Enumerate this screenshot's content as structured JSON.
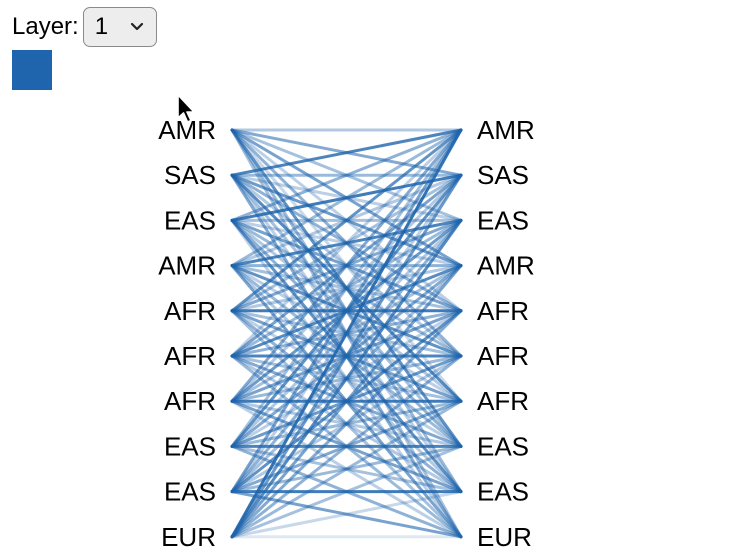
{
  "controls": {
    "layer_label": "Layer:",
    "layer_value": "1"
  },
  "colors": {
    "link": "#1f65ad",
    "swatch": "#1f65ad"
  },
  "diagram": {
    "left_nodes": [
      "AMR",
      "SAS",
      "EAS",
      "AMR",
      "AFR",
      "AFR",
      "AFR",
      "EAS",
      "EAS",
      "EUR"
    ],
    "right_nodes": [
      "AMR",
      "SAS",
      "EAS",
      "AMR",
      "AFR",
      "AFR",
      "AFR",
      "EAS",
      "EAS",
      "EUR"
    ],
    "link_weights": [
      [
        0.35,
        0.55,
        0.4,
        0.6,
        0.3,
        0.5,
        0.25,
        0.7,
        0.45,
        0.4
      ],
      [
        0.8,
        0.45,
        0.3,
        0.65,
        0.5,
        0.35,
        0.75,
        0.4,
        0.3,
        0.55
      ],
      [
        0.5,
        0.85,
        0.4,
        0.3,
        0.6,
        0.45,
        0.35,
        0.5,
        0.7,
        0.3
      ],
      [
        0.45,
        0.35,
        0.8,
        0.5,
        0.4,
        0.7,
        0.3,
        0.45,
        0.35,
        0.6
      ],
      [
        0.7,
        0.4,
        0.55,
        0.35,
        0.85,
        0.4,
        0.6,
        0.3,
        0.5,
        0.4
      ],
      [
        0.3,
        0.6,
        0.45,
        0.75,
        0.5,
        0.8,
        0.4,
        0.55,
        0.35,
        0.45
      ],
      [
        0.55,
        0.35,
        0.65,
        0.4,
        0.6,
        0.45,
        0.85,
        0.35,
        0.6,
        0.3
      ],
      [
        0.4,
        0.7,
        0.35,
        0.55,
        0.3,
        0.65,
        0.45,
        0.8,
        0.4,
        0.5
      ],
      [
        0.6,
        0.3,
        0.5,
        0.4,
        0.7,
        0.35,
        0.55,
        0.45,
        0.85,
        0.6
      ],
      [
        0.9,
        0.65,
        0.75,
        0.6,
        0.55,
        0.5,
        0.45,
        0.4,
        0.25,
        0.15
      ]
    ]
  }
}
